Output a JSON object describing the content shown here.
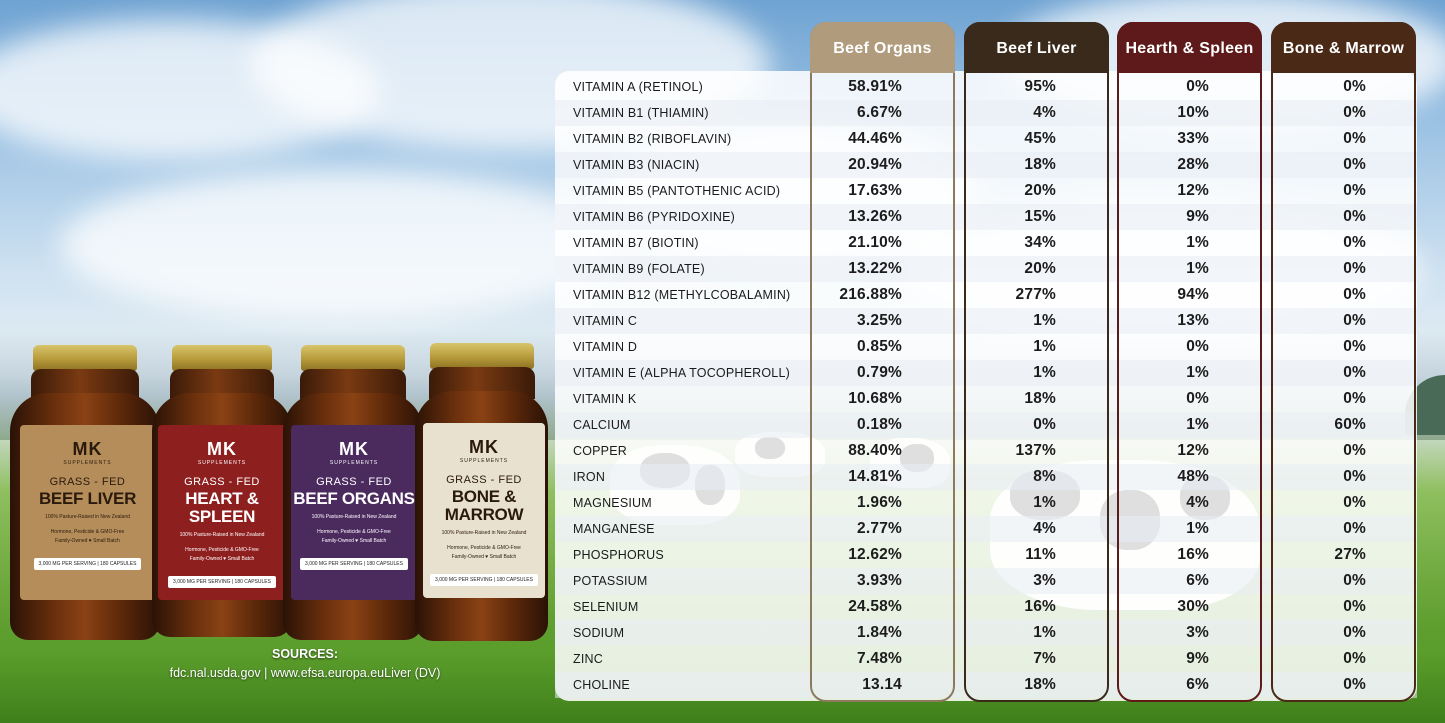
{
  "columns": [
    {
      "name": "Beef Organs",
      "header_color": "#b09b7c",
      "border_color": "#8d7a5e"
    },
    {
      "name": "Beef Liver",
      "header_color": "#3a2a1c",
      "border_color": "#3a2a1c"
    },
    {
      "name": "Hearth & Spleen",
      "header_color": "#5e1a1a",
      "border_color": "#5e1a1a"
    },
    {
      "name": "Bone & Marrow",
      "header_color": "#4a2a17",
      "border_color": "#4a2a17"
    }
  ],
  "rows": [
    {
      "label": "VITAMIN A (RETINOL)",
      "values": [
        "58.91%",
        "95%",
        "0%",
        "0%"
      ]
    },
    {
      "label": "VITAMIN B1 (THIAMIN)",
      "values": [
        "6.67%",
        "4%",
        "10%",
        "0%"
      ]
    },
    {
      "label": "VITAMIN B2 (RIBOFLAVIN)",
      "values": [
        "44.46%",
        "45%",
        "33%",
        "0%"
      ]
    },
    {
      "label": "VITAMIN B3 (NIACIN)",
      "values": [
        "20.94%",
        "18%",
        "28%",
        "0%"
      ]
    },
    {
      "label": "VITAMIN B5 (PANTOTHENIC ACID)",
      "values": [
        "17.63%",
        "20%",
        "12%",
        "0%"
      ]
    },
    {
      "label": "VITAMIN B6 (PYRIDOXINE)",
      "values": [
        "13.26%",
        "15%",
        "9%",
        "0%"
      ]
    },
    {
      "label": "VITAMIN B7 (BIOTIN)",
      "values": [
        "21.10%",
        "34%",
        "1%",
        "0%"
      ]
    },
    {
      "label": "VITAMIN B9 (FOLATE)",
      "values": [
        "13.22%",
        "20%",
        "1%",
        "0%"
      ]
    },
    {
      "label": "VITAMIN B12 (METHYLCOBALAMIN)",
      "values": [
        "216.88%",
        "277%",
        "94%",
        "0%"
      ]
    },
    {
      "label": "VITAMIN C",
      "values": [
        "3.25%",
        "1%",
        "13%",
        "0%"
      ]
    },
    {
      "label": "VITAMIN D",
      "values": [
        "0.85%",
        "1%",
        "0%",
        "0%"
      ]
    },
    {
      "label": "VITAMIN E (ALPHA TOCOPHEROLL)",
      "values": [
        "0.79%",
        "1%",
        "1%",
        "0%"
      ]
    },
    {
      "label": "VITAMIN K",
      "values": [
        "10.68%",
        "18%",
        "0%",
        "0%"
      ]
    },
    {
      "label": "CALCIUM",
      "values": [
        "0.18%",
        "0%",
        "1%",
        "60%"
      ]
    },
    {
      "label": "COPPER",
      "values": [
        "88.40%",
        "137%",
        "12%",
        "0%"
      ]
    },
    {
      "label": "IRON",
      "values": [
        "14.81%",
        "8%",
        "48%",
        "0%"
      ]
    },
    {
      "label": "MAGNESIUM",
      "values": [
        "1.96%",
        "1%",
        "4%",
        "0%"
      ]
    },
    {
      "label": "MANGANESE",
      "values": [
        "2.77%",
        "4%",
        "1%",
        "0%"
      ]
    },
    {
      "label": "PHOSPHORUS",
      "values": [
        "12.62%",
        "11%",
        "16%",
        "27%"
      ]
    },
    {
      "label": "POTASSIUM",
      "values": [
        "3.93%",
        "3%",
        "6%",
        "0%"
      ]
    },
    {
      "label": "SELENIUM",
      "values": [
        "24.58%",
        "16%",
        "30%",
        "0%"
      ]
    },
    {
      "label": "SODIUM",
      "values": [
        "1.84%",
        "1%",
        "3%",
        "0%"
      ]
    },
    {
      "label": "ZINC",
      "values": [
        "7.48%",
        "7%",
        "9%",
        "0%"
      ]
    },
    {
      "label": "CHOLINE",
      "values": [
        "13.14",
        "18%",
        "6%",
        "0%"
      ]
    }
  ],
  "sources": {
    "title": "SOURCES:",
    "text": "fdc.nal.usda.gov  |  www.efsa.europa.euLiver (DV)"
  },
  "products": [
    {
      "brand": "MK",
      "brand_sub": "SUPPLEMENTS",
      "line1": "GRASS - FED",
      "line2": "BEEF LIVER",
      "tagline": "100% Pasture-Raised in New Zealand",
      "claims1": "Hormone, Pesticide & GMO-Free",
      "claims2": "Family-Owned ♥ Small Batch",
      "dose": "3,000 MG PER SERVING | 180 CAPSULES",
      "label_color": "#b58d5b",
      "text_color": "#2a1a0c"
    },
    {
      "brand": "MK",
      "brand_sub": "SUPPLEMENTS",
      "line1": "GRASS - FED",
      "line2": "HEART & SPLEEN",
      "tagline": "100% Pasture-Raised in New Zealand",
      "claims1": "Hormone, Pesticide & GMO-Free",
      "claims2": "Family-Owned ♥ Small Batch",
      "dose": "3,000 MG PER SERVING | 180 CAPSULES",
      "label_color": "#8e1f1f",
      "text_color": "#ffffff"
    },
    {
      "brand": "MK",
      "brand_sub": "SUPPLEMENTS",
      "line1": "GRASS - FED",
      "line2": "BEEF ORGANS",
      "tagline": "100% Pasture-Raised in New Zealand",
      "claims1": "Hormone, Pesticide & GMO-Free",
      "claims2": "Family-Owned ♥ Small Batch",
      "dose": "3,000 MG PER SERVING | 180 CAPSULES",
      "label_color": "#4b2a5e",
      "text_color": "#ffffff"
    },
    {
      "brand": "MK",
      "brand_sub": "SUPPLEMENTS",
      "line1": "GRASS - FED",
      "line2": "BONE & MARROW",
      "tagline": "100% Pasture-Raised in New Zealand",
      "claims1": "Hormone, Pesticide & GMO-Free",
      "claims2": "Family-Owned ♥ Small Batch",
      "dose": "3,000 MG PER SERVING | 180 CAPSULES",
      "label_color": "#e9e1cf",
      "text_color": "#2a1a0c"
    }
  ]
}
